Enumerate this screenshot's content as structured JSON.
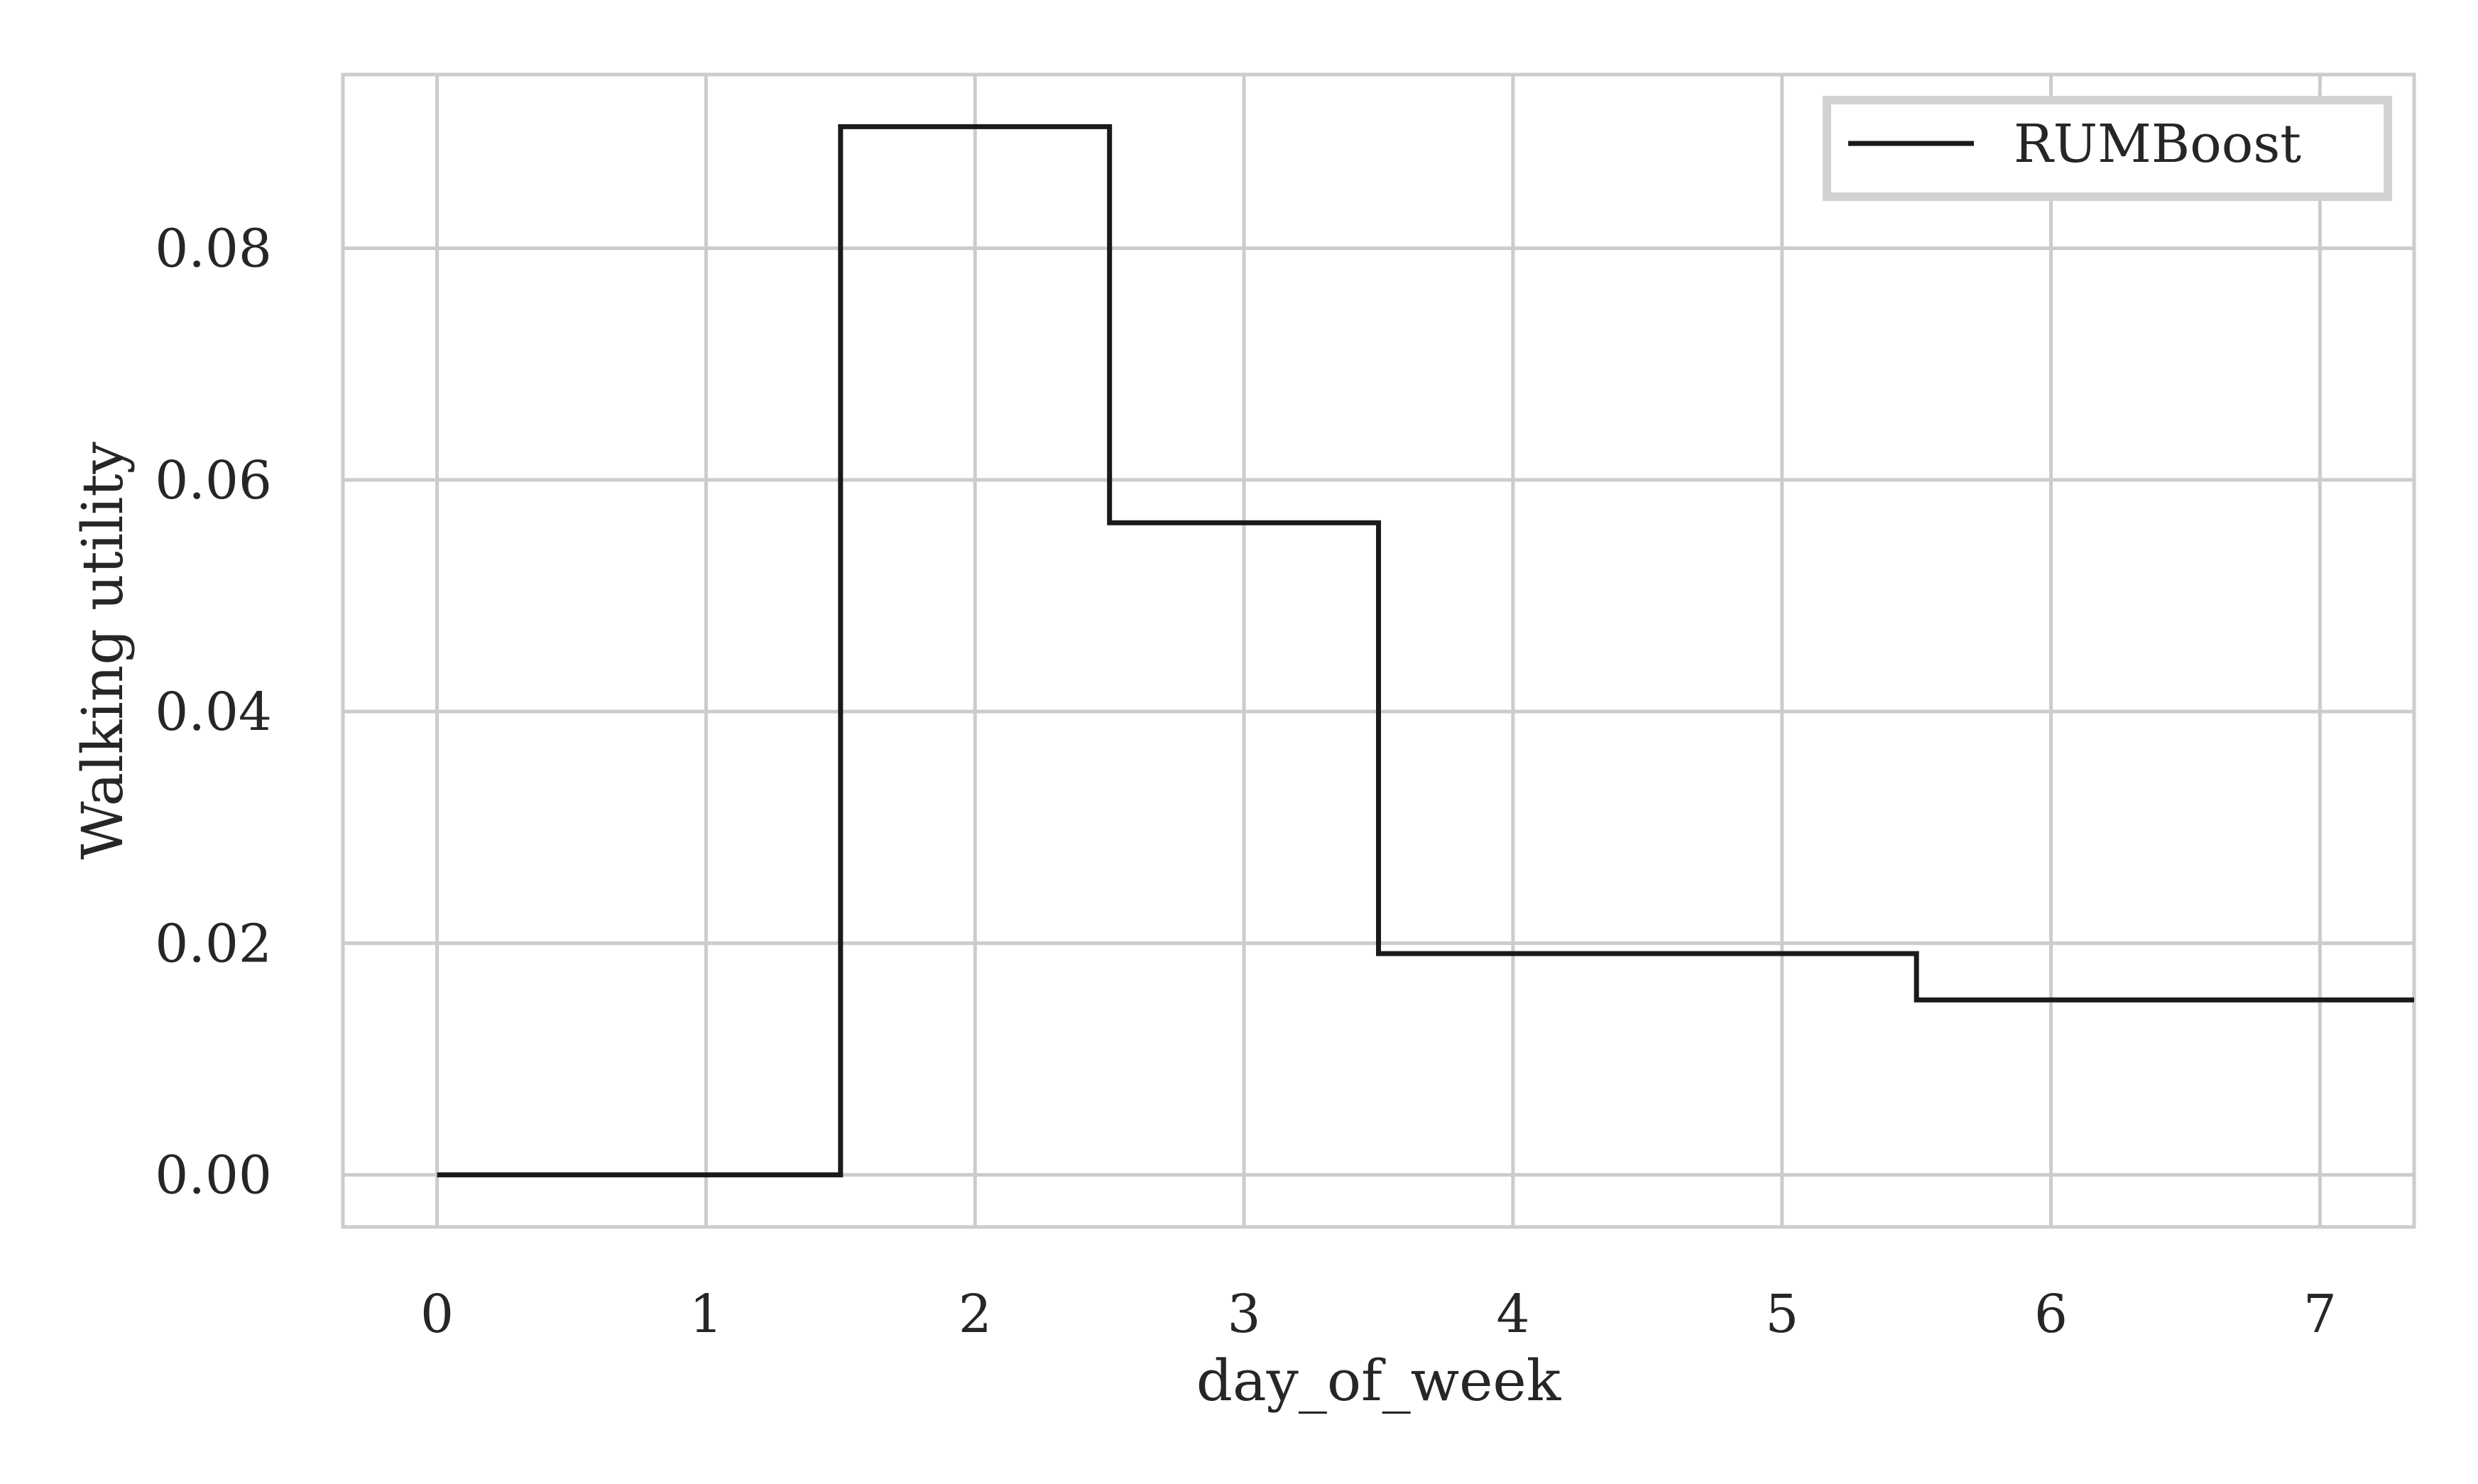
{
  "chart_data": {
    "type": "line",
    "step": "mid",
    "xlabel": "day_of_week",
    "ylabel": "Walking utility",
    "xlim": [
      -0.35,
      7.35
    ],
    "ylim": [
      -0.0045,
      0.095
    ],
    "x_ticks": [
      0,
      1,
      2,
      3,
      4,
      5,
      6,
      7
    ],
    "x_tick_labels": [
      "0",
      "1",
      "2",
      "3",
      "4",
      "5",
      "6",
      "7"
    ],
    "y_ticks": [
      0.0,
      0.02,
      0.04,
      0.06,
      0.08
    ],
    "y_tick_labels": [
      "0.00",
      "0.02",
      "0.04",
      "0.06",
      "0.08"
    ],
    "grid": true,
    "legend_position": "top-right",
    "series": [
      {
        "name": "RUMBoost",
        "color": "#1a1a1a",
        "x": [
          0,
          1,
          2,
          3,
          4,
          5,
          6,
          7,
          7.35
        ],
        "y": [
          0.0,
          0.0,
          0.0905,
          0.0563,
          0.0191,
          0.0191,
          0.0151,
          0.0151,
          0.0151
        ]
      }
    ]
  }
}
